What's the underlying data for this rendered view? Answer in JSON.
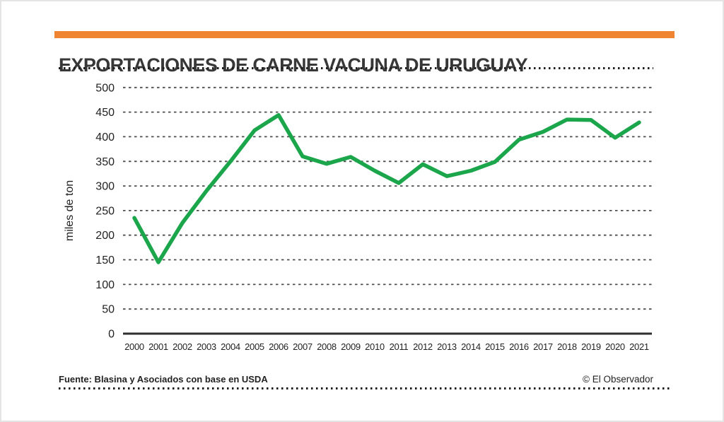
{
  "page": {
    "title": "EXPORTACIONES DE CARNE VACUNA DE URUGUAY",
    "accent_color": "#EF8531",
    "footer": {
      "source": "Fuente: Blasina y Asociados con base en USDA",
      "credit": "© El Observador"
    }
  },
  "chart_data": {
    "type": "line",
    "title": "EXPORTACIONES DE CARNE VACUNA DE URUGUAY",
    "xlabel": "",
    "ylabel": "miles de ton",
    "categories": [
      "2000",
      "2001",
      "2002",
      "2003",
      "2004",
      "2005",
      "2006",
      "2007",
      "2008",
      "2009",
      "2010",
      "2011",
      "2012",
      "2013",
      "2014",
      "2015",
      "2016",
      "2017",
      "2018",
      "2019",
      "2020",
      "2021"
    ],
    "values": [
      235,
      145,
      225,
      290,
      350,
      413,
      444,
      360,
      345,
      359,
      331,
      306,
      344,
      320,
      331,
      349,
      394,
      410,
      435,
      434,
      398,
      429
    ],
    "ylim": [
      0,
      500
    ],
    "ytick_step": 50,
    "yticks": [
      0,
      50,
      100,
      150,
      200,
      250,
      300,
      350,
      400,
      450,
      500
    ],
    "grid": "horizontal dashed",
    "legend_position": "none",
    "line_color": "#1BA64C",
    "source": "Fuente: Blasina y Asociados con base en USDA",
    "credit": "© El Observador"
  }
}
